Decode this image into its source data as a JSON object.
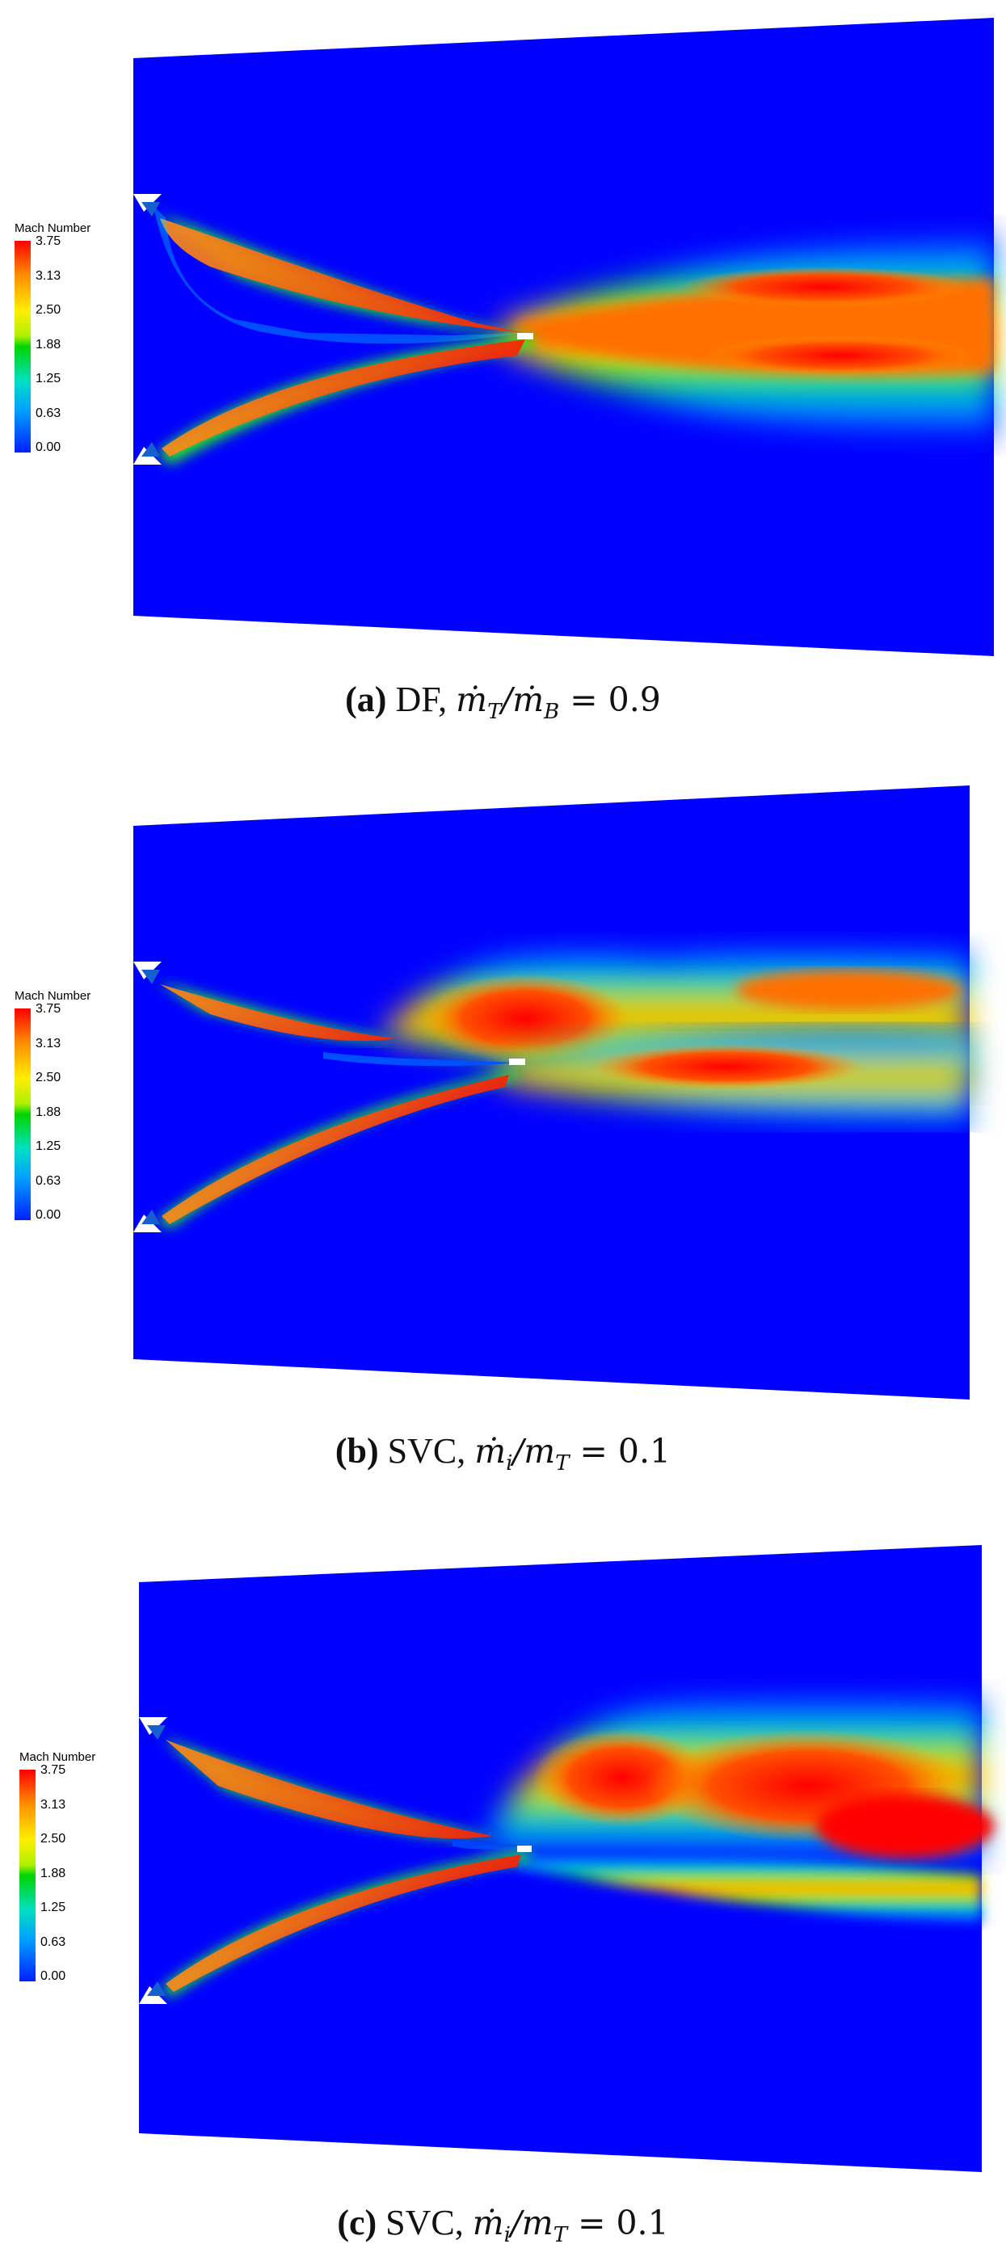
{
  "legend": {
    "title": "Mach Number",
    "ticks": [
      "3.75",
      "3.13",
      "2.50",
      "1.88",
      "1.25",
      "0.63",
      "0.00"
    ]
  },
  "colormap": [
    "#0000ff",
    "#00a0ff",
    "#00e0e0",
    "#00e000",
    "#b0f000",
    "#ffee00",
    "#ff9800",
    "#ff0000"
  ],
  "panels": [
    {
      "label": "(a)",
      "text": "DF,",
      "math_lhs_a": "ṁ",
      "math_sub_a": "T",
      "math_lhs_b": "ṁ",
      "math_sub_b": "B",
      "math_rhs": "= 0.9"
    },
    {
      "label": "(b)",
      "text": "SVC,",
      "math_lhs_a": "ṁ",
      "math_sub_a": "i",
      "math_lhs_b": "m",
      "math_sub_b": "T",
      "math_rhs": "= 0.1"
    },
    {
      "label": "(c)",
      "text": "SVC,",
      "math_lhs_a": "ṁ",
      "math_sub_a": "i",
      "math_lhs_b": "m",
      "math_sub_b": "T",
      "math_rhs": "= 0.1"
    }
  ]
}
